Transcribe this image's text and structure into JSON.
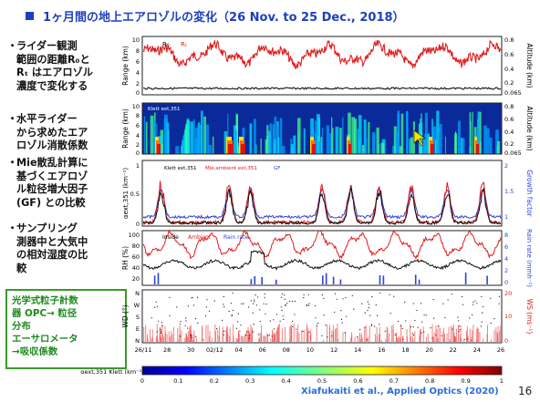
{
  "slide": {
    "title": "1ヶ月間の地上エアロゾルの変化（26 Nov. to 25 Dec., 2018）",
    "page_number": "16",
    "citation": "Xiafukaiti et al., Applied Optics (2020)"
  },
  "bullets": [
    {
      "mark": "・",
      "lines": [
        "ライダー観測",
        "範囲の距離R₀と",
        "Rₜ はエアロゾル",
        "濃度で変化する"
      ]
    },
    {
      "mark": "・",
      "lines": [
        "水平ライダー",
        "から求めたエア",
        "ロゾル消散係数"
      ]
    },
    {
      "mark": "・",
      "lines": [
        "Mie散乱計算に",
        "基づくエアロゾ",
        "ル粒径増大因子",
        "(GF) との比較"
      ]
    },
    {
      "mark": "・",
      "lines": [
        "サンプリング",
        "測器中と大気中",
        "の相対湿度の比",
        "較"
      ]
    }
  ],
  "green_box": {
    "lines": [
      "光学式粒子計数",
      "器 OPC→ 粒径",
      "分布",
      "エーサロメータ",
      "→吸収係数"
    ]
  },
  "colors": {
    "title": "#1f3fbf",
    "green_box": "#3a9a2a",
    "citation": "#2a6fd6",
    "series_red": "#e11b1b",
    "series_blue": "#2f43d8",
    "series_black": "#111111"
  },
  "panels": {
    "p1": {
      "ylabel": "Range (km)",
      "y2label": "Altitude (km)",
      "yticks": [
        "10",
        "8",
        "6",
        "4",
        "2",
        "0"
      ],
      "y2ticks": [
        "0.8",
        "0.6",
        "0.4",
        "0.2",
        "0.065"
      ],
      "legend": [
        "R₀",
        "Rₜ"
      ]
    },
    "p2": {
      "ylabel": "Range (km)",
      "y2label": "Altitude (km)",
      "yticks": [
        "10",
        "8",
        "6",
        "4",
        "2",
        "0"
      ],
      "y2ticks": [
        "0.8",
        "0.6",
        "0.4",
        "0.2",
        "0.065"
      ],
      "legend": "Klett ext,351"
    },
    "p3": {
      "ylabel": "αext,351 (km⁻¹)",
      "y2label": "Growth factor",
      "yticks": [
        "1",
        "0.5",
        "0"
      ],
      "y2ticks": [
        "2",
        "1.5",
        "1"
      ],
      "legend": [
        "Klett ext,351",
        "Mie,ambient ext,351",
        "GF"
      ]
    },
    "p4": {
      "ylabel": "RH (%)",
      "y2label": "Rain rate (mmh⁻¹)",
      "yticks": [
        "100",
        "80",
        "60",
        "40",
        "20"
      ],
      "y2ticks": [
        "8",
        "6",
        "4",
        "2",
        "0"
      ],
      "legend": [
        "Inside",
        "Ambient",
        "Rain rate"
      ]
    },
    "p5": {
      "ylabel": "WD (°)",
      "y2label": "WS (ms⁻¹)",
      "yticks": [
        "N",
        "W",
        "S",
        "E",
        "N"
      ],
      "y2ticks": [
        "20",
        "10",
        "0"
      ],
      "xticks": [
        "26/11",
        "28",
        "30",
        "02/12",
        "04",
        "06",
        "08",
        "10",
        "12",
        "14",
        "16",
        "18",
        "20",
        "22",
        "24",
        "26"
      ]
    }
  },
  "colorbar": {
    "label": "αext,351 Klett (km⁻¹)",
    "ticks": [
      "0",
      "0.1",
      "0.2",
      "0.3",
      "0.4",
      "0.5",
      "0.6",
      "0.7",
      "0.8",
      "0.9",
      "1"
    ]
  }
}
